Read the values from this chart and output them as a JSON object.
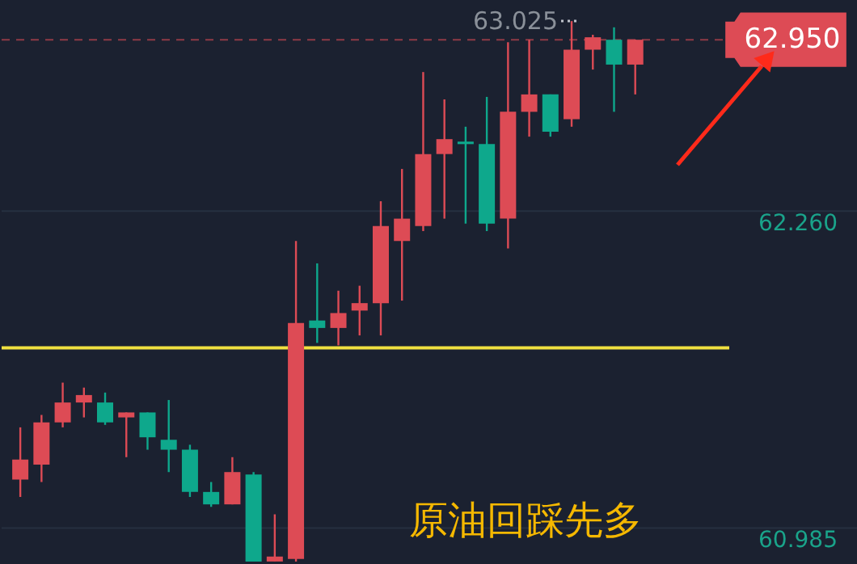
{
  "chart_data": {
    "type": "candlestick",
    "categories": [
      null,
      null,
      null,
      null,
      null,
      null,
      null,
      null,
      null,
      null,
      null,
      null,
      null,
      null,
      null,
      null,
      null,
      null,
      null,
      null,
      null,
      null,
      null,
      null,
      null,
      null,
      null,
      null,
      null,
      null
    ],
    "ohlc": [
      [
        61.18,
        61.39,
        61.11,
        61.26
      ],
      [
        61.24,
        61.44,
        61.17,
        61.41
      ],
      [
        61.41,
        61.57,
        61.39,
        61.49
      ],
      [
        61.49,
        61.55,
        61.43,
        61.52
      ],
      [
        61.49,
        61.53,
        61.4,
        61.41
      ],
      [
        61.43,
        61.45,
        61.27,
        61.45
      ],
      [
        61.45,
        61.45,
        61.3,
        61.35
      ],
      [
        61.34,
        61.5,
        61.21,
        61.3
      ],
      [
        61.3,
        61.32,
        61.11,
        61.13
      ],
      [
        61.13,
        61.17,
        61.07,
        61.08
      ],
      [
        61.08,
        61.27,
        61.08,
        61.21
      ],
      [
        61.2,
        61.21,
        60.85,
        60.85
      ],
      [
        60.85,
        61.04,
        60.85,
        60.87
      ],
      [
        60.86,
        62.14,
        60.85,
        61.81
      ],
      [
        61.82,
        62.05,
        61.73,
        61.79
      ],
      [
        61.79,
        61.94,
        61.72,
        61.85
      ],
      [
        61.86,
        61.96,
        61.76,
        61.89
      ],
      [
        61.89,
        62.3,
        61.76,
        62.2
      ],
      [
        62.14,
        62.43,
        61.9,
        62.23
      ],
      [
        62.2,
        62.82,
        62.18,
        62.49
      ],
      [
        62.49,
        62.71,
        62.23,
        62.55
      ],
      [
        62.54,
        62.6,
        62.21,
        62.53
      ],
      [
        62.53,
        62.72,
        62.18,
        62.21
      ],
      [
        62.23,
        62.94,
        62.11,
        62.66
      ],
      [
        62.66,
        62.95,
        62.56,
        62.73
      ],
      [
        62.73,
        62.73,
        62.56,
        62.58
      ],
      [
        62.63,
        63.025,
        62.6,
        62.91
      ],
      [
        62.91,
        62.97,
        62.83,
        62.96
      ],
      [
        62.95,
        63.0,
        62.66,
        62.85
      ],
      [
        62.85,
        62.95,
        62.73,
        62.95
      ]
    ],
    "colors": [
      "#dd4b55",
      "#dd4b55",
      "#dd4b55",
      "#dd4b55",
      "#0ea88c",
      "#dd4b55",
      "#0ea88c",
      "#0ea88c",
      "#0ea88c",
      "#0ea88c",
      "#dd4b55",
      "#0ea88c",
      "#dd4b55",
      "#dd4b55",
      "#0ea88c",
      "#dd4b55",
      "#dd4b55",
      "#dd4b55",
      "#dd4b55",
      "#dd4b55",
      "#dd4b55",
      "#0ea88c",
      "#0ea88c",
      "#dd4b55",
      "#dd4b55",
      "#0ea88c",
      "#dd4b55",
      "#dd4b55",
      "#0ea88c",
      "#dd4b55"
    ],
    "ylim": [
      60.84,
      63.11
    ],
    "yticks": [
      {
        "value": 62.26,
        "label": "62.260"
      },
      {
        "value": 60.985,
        "label": "60.985"
      }
    ],
    "grid": "y",
    "ref_lines": [
      {
        "axis": "y",
        "value": 61.71,
        "color": "#f0e040",
        "line_style": "solid"
      },
      {
        "axis": "y",
        "value": 62.95,
        "label": "62.950",
        "color": "#dd4b55",
        "line_style": "dashed"
      }
    ],
    "annotations": [
      "63.025",
      "原油回踩先多"
    ]
  }
}
